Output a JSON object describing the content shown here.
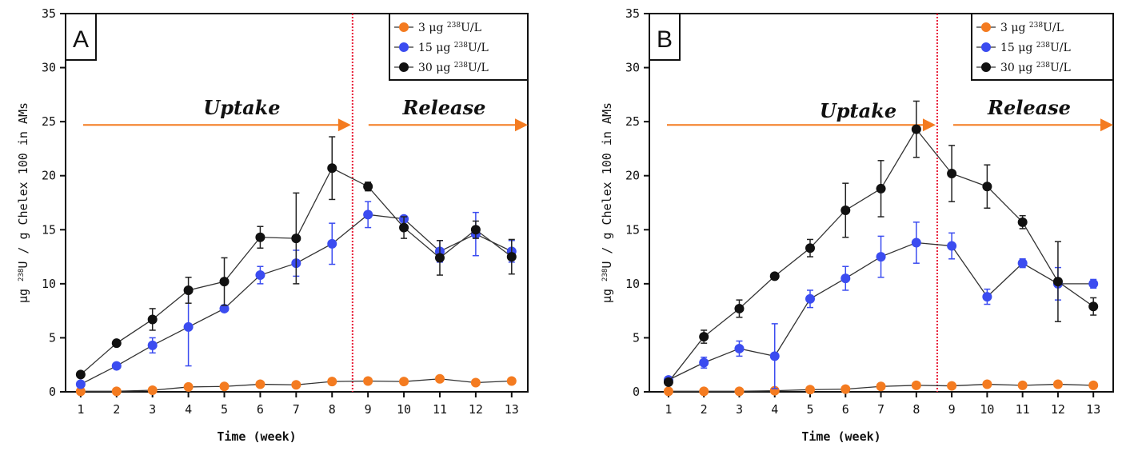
{
  "chart_data": [
    {
      "type": "line",
      "panel_label": "A",
      "xlabel": "Time (week)",
      "ylabel": "μg 238U / g Chelex 100 in AMs",
      "ylim": [
        0,
        35
      ],
      "xlim": [
        0.58,
        13.45
      ],
      "xticks": [
        1,
        2,
        3,
        4,
        5,
        6,
        7,
        8,
        9,
        10,
        11,
        12,
        13
      ],
      "yticks": [
        0,
        5,
        10,
        15,
        20,
        25,
        30,
        35
      ],
      "grid": false,
      "legend_placement": "top-right",
      "divider_week": 8.57,
      "annotations": {
        "uptake": "Uptake",
        "release": "Release"
      },
      "series": [
        {
          "name": "3 μg 238U/L",
          "color": "#f47b20",
          "x": [
            1,
            2,
            3,
            4,
            5,
            6,
            7,
            8,
            9,
            10,
            11,
            12,
            13
          ],
          "values": [
            0.05,
            0.05,
            0.15,
            0.45,
            0.5,
            0.7,
            0.65,
            0.95,
            1.0,
            0.95,
            1.2,
            0.85,
            1.0
          ],
          "errors": [
            0,
            0,
            0,
            0,
            0,
            0,
            0,
            0,
            0,
            0,
            0,
            0,
            0
          ]
        },
        {
          "name": "15 μg 238U/L",
          "color": "#3b4cf0",
          "x": [
            1,
            2,
            3,
            4,
            5,
            6,
            7,
            8,
            9,
            10,
            11,
            12,
            13
          ],
          "values": [
            0.7,
            2.4,
            4.3,
            6.0,
            7.7,
            10.8,
            11.9,
            13.7,
            16.4,
            16.0,
            13.0,
            14.6,
            13.0
          ],
          "errors": [
            0,
            0,
            0.7,
            3.6,
            0,
            0.8,
            1.2,
            1.9,
            1.2,
            0,
            1.0,
            2.0,
            1.0
          ]
        },
        {
          "name": "30 μg 238U/L",
          "color": "#111111",
          "x": [
            1,
            2,
            3,
            4,
            5,
            6,
            7,
            8,
            9,
            10,
            11,
            12,
            13
          ],
          "values": [
            1.6,
            4.5,
            6.7,
            9.4,
            10.2,
            14.3,
            14.2,
            20.7,
            19.0,
            15.2,
            12.4,
            15.0,
            12.5
          ],
          "errors": [
            0,
            0,
            1.0,
            1.2,
            2.2,
            1.0,
            4.2,
            2.9,
            0.4,
            1.0,
            1.6,
            0.8,
            1.6
          ]
        }
      ]
    },
    {
      "type": "line",
      "panel_label": "B",
      "xlabel": "Time (week)",
      "ylabel": "μg 238U / g Chelex 100 in AMs",
      "ylim": [
        0,
        35
      ],
      "xlim": [
        0.46,
        13.56
      ],
      "xticks": [
        1,
        2,
        3,
        4,
        5,
        6,
        7,
        8,
        9,
        10,
        11,
        12,
        13
      ],
      "yticks": [
        0,
        5,
        10,
        15,
        20,
        25,
        30,
        35
      ],
      "grid": false,
      "legend_placement": "top-right",
      "divider_week": 8.59,
      "annotations": {
        "uptake": "Uptake",
        "release": "Release"
      },
      "series": [
        {
          "name": "3 μg 238U/L",
          "color": "#f47b20",
          "x": [
            1,
            2,
            3,
            4,
            5,
            6,
            7,
            8,
            9,
            10,
            11,
            12,
            13
          ],
          "values": [
            0.05,
            0.05,
            0.05,
            0.1,
            0.2,
            0.25,
            0.5,
            0.6,
            0.55,
            0.7,
            0.6,
            0.7,
            0.6
          ],
          "errors": [
            0,
            0,
            0,
            0,
            0,
            0,
            0,
            0,
            0,
            0,
            0,
            0,
            0
          ]
        },
        {
          "name": "15 μg 238U/L",
          "color": "#3b4cf0",
          "x": [
            1,
            2,
            3,
            4,
            5,
            6,
            7,
            8,
            9,
            10,
            11,
            12,
            13
          ],
          "values": [
            1.1,
            2.7,
            4.0,
            3.3,
            8.6,
            10.5,
            12.5,
            13.8,
            13.5,
            8.8,
            11.9,
            10.0,
            10.0
          ],
          "errors": [
            0.2,
            0.5,
            0.7,
            3.0,
            0.8,
            1.1,
            1.9,
            1.9,
            1.2,
            0.7,
            0.4,
            1.5,
            0.4
          ]
        },
        {
          "name": "30 μg 238U/L",
          "color": "#111111",
          "x": [
            1,
            2,
            3,
            4,
            5,
            6,
            7,
            8,
            9,
            10,
            11,
            12,
            13
          ],
          "values": [
            0.9,
            5.1,
            7.7,
            10.7,
            13.3,
            16.8,
            18.8,
            24.3,
            20.2,
            19.0,
            15.7,
            10.2,
            7.9
          ],
          "errors": [
            0,
            0.6,
            0.8,
            0,
            0.8,
            2.5,
            2.6,
            2.6,
            2.6,
            2.0,
            0.6,
            3.7,
            0.8
          ]
        }
      ]
    }
  ]
}
